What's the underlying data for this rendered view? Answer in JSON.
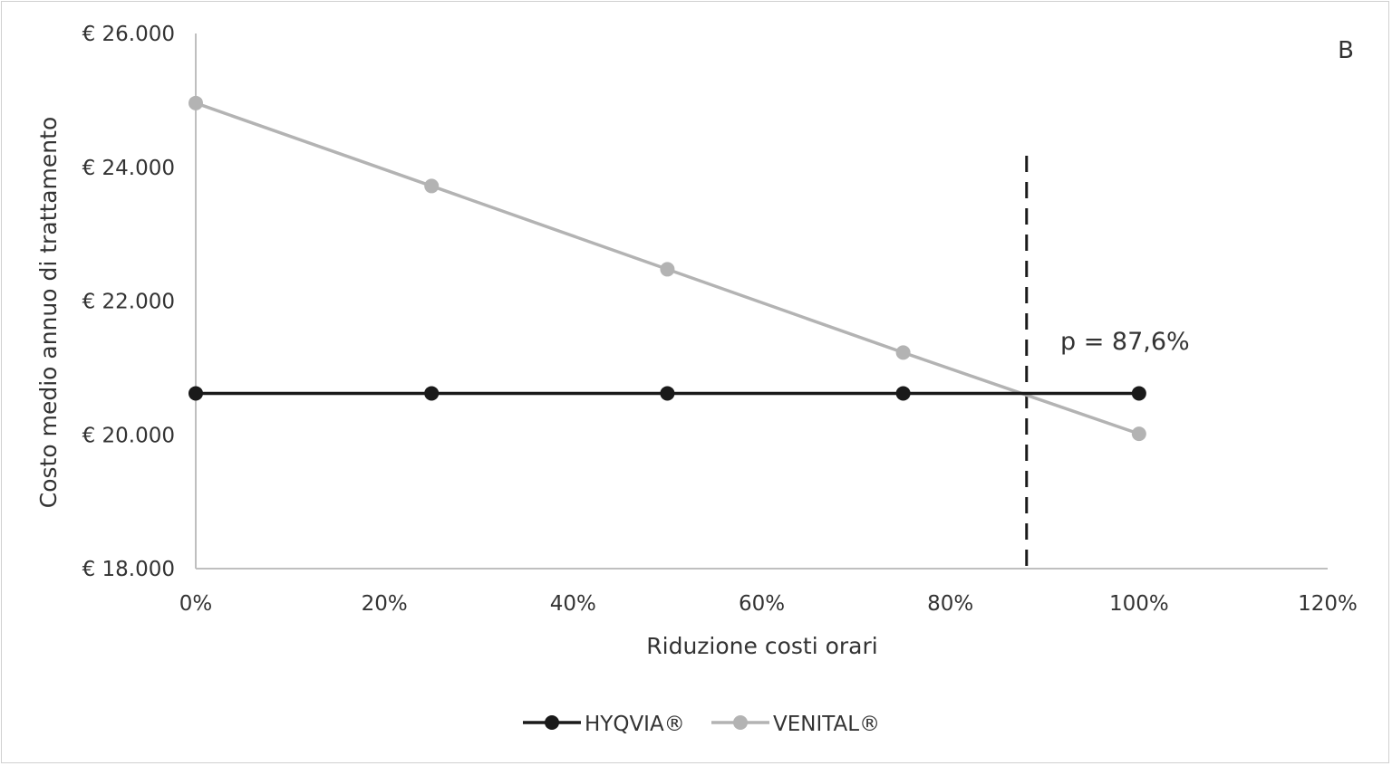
{
  "chart_data": {
    "type": "line",
    "panel_label": "B",
    "xlabel": "Riduzione costi orari",
    "ylabel": "Costo medio annuo di trattamento",
    "xlim": [
      0,
      120
    ],
    "ylim": [
      18000,
      26000
    ],
    "x_ticks": [
      0,
      20,
      40,
      60,
      80,
      100,
      120
    ],
    "x_tick_labels": [
      "0%",
      "20%",
      "40%",
      "60%",
      "80%",
      "100%",
      "120%"
    ],
    "y_ticks": [
      18000,
      20000,
      22000,
      24000,
      26000
    ],
    "y_tick_labels": [
      "€ 18.000",
      "€ 20.000",
      "€ 22.000",
      "€ 24.000",
      "€ 26.000"
    ],
    "grid": false,
    "x": [
      0,
      25,
      50,
      75,
      100
    ],
    "series": [
      {
        "name": "HYQVIA®",
        "color": "#1a1a1a",
        "values": [
          20620,
          20620,
          20620,
          20620,
          20620
        ]
      },
      {
        "name": "VENITAL®",
        "color": "#b3b3b3",
        "values": [
          24960,
          23720,
          22475,
          21230,
          20015
        ]
      }
    ],
    "threshold": {
      "x": 87.6,
      "label": "p = 87,6%",
      "style": "dashed"
    },
    "legend_position": "bottom"
  }
}
